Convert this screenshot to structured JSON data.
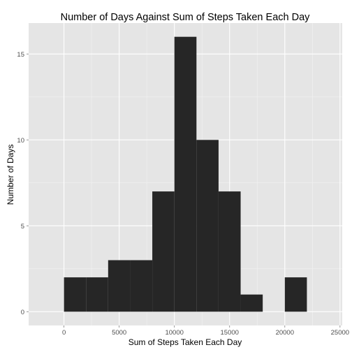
{
  "chart_data": {
    "type": "bar",
    "title": "Number of Days Against Sum of Steps Taken Each Day",
    "xlabel": "Sum of Steps Taken Each Day",
    "ylabel": "Number of Days",
    "xlim": [
      -3200,
      25200
    ],
    "ylim": [
      -0.8,
      16.8
    ],
    "x_ticks": [
      0,
      5000,
      10000,
      15000,
      20000,
      25000
    ],
    "y_ticks": [
      0,
      5,
      10,
      15
    ],
    "bins": [
      {
        "x0": 0,
        "x1": 2000,
        "value": 2
      },
      {
        "x0": 2000,
        "x1": 4000,
        "value": 2
      },
      {
        "x0": 4000,
        "x1": 6000,
        "value": 3
      },
      {
        "x0": 6000,
        "x1": 8000,
        "value": 3
      },
      {
        "x0": 8000,
        "x1": 10000,
        "value": 7
      },
      {
        "x0": 10000,
        "x1": 12000,
        "value": 16
      },
      {
        "x0": 12000,
        "x1": 14000,
        "value": 10
      },
      {
        "x0": 14000,
        "x1": 16000,
        "value": 7
      },
      {
        "x0": 16000,
        "x1": 18000,
        "value": 1
      },
      {
        "x0": 18000,
        "x1": 20000,
        "value": 0
      },
      {
        "x0": 20000,
        "x1": 22000,
        "value": 2
      }
    ],
    "grid": true,
    "colors": {
      "panel": "#e5e5e5",
      "grid_major": "#ffffff",
      "grid_minor": "#f2f2f2",
      "bar": "#262626"
    }
  }
}
